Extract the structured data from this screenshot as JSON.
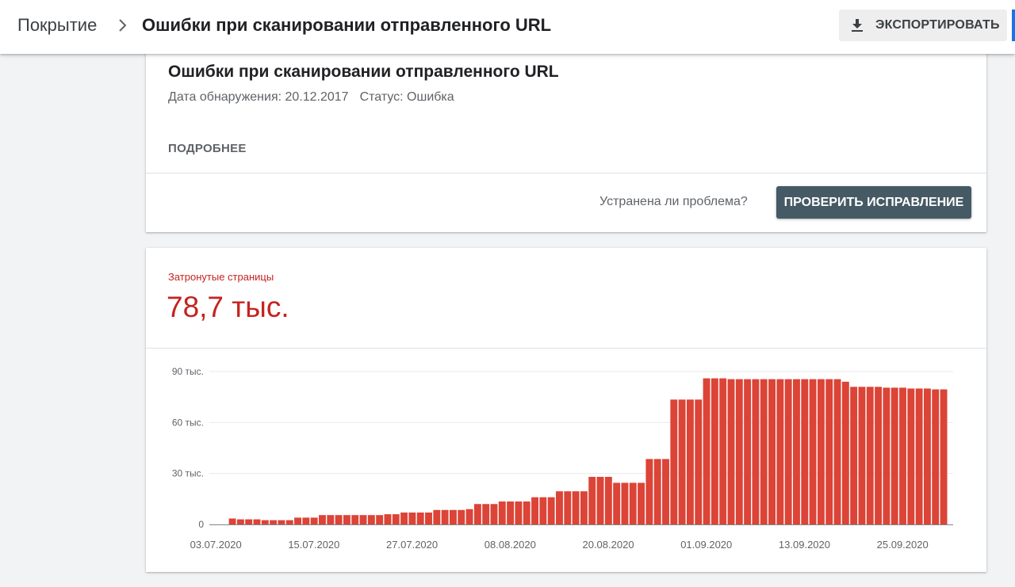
{
  "breadcrumb": {
    "root": "Покрытие",
    "current": "Ошибки при сканировании отправленного URL"
  },
  "toolbar": {
    "export_label": "ЭКСПОРТИРОВАТЬ",
    "export_icon": "download-icon"
  },
  "issue": {
    "title": "Ошибки при сканировании отправленного URL",
    "detected": "Дата обнаружения: 20.12.2017",
    "status": "Статус: Ошибка",
    "more_label": "ПОДРОБНЕЕ",
    "question": "Устранена ли проблема?",
    "validate_label": "ПРОВЕРИТЬ ИСПРАВЛЕНИЕ"
  },
  "metric": {
    "label": "Затронутые страницы",
    "value": "78,7 тыс."
  },
  "colors": {
    "accent": "#c5221f",
    "bar": "#db4437",
    "button": "#455a64"
  },
  "chart_data": {
    "type": "bar",
    "title": "",
    "xlabel": "",
    "ylabel": "",
    "ylim": [
      0,
      90000
    ],
    "y_ticks": [
      0,
      30000,
      60000,
      90000
    ],
    "y_tick_labels": [
      "0",
      "30 тыс.",
      "60 тыс.",
      "90 тыс."
    ],
    "x_tick_labels": [
      "03.07.2020",
      "15.07.2020",
      "27.07.2020",
      "08.08.2020",
      "20.08.2020",
      "01.09.2020",
      "13.09.2020",
      "25.09.2020"
    ],
    "grid": true,
    "start_date": "03.07.2020",
    "days": [
      "03.07.2020",
      "04.07.2020",
      "05.07.2020",
      "06.07.2020",
      "07.07.2020",
      "08.07.2020",
      "09.07.2020",
      "10.07.2020",
      "11.07.2020",
      "12.07.2020",
      "13.07.2020",
      "14.07.2020",
      "15.07.2020",
      "16.07.2020",
      "17.07.2020",
      "18.07.2020",
      "19.07.2020",
      "20.07.2020",
      "21.07.2020",
      "22.07.2020",
      "23.07.2020",
      "24.07.2020",
      "25.07.2020",
      "26.07.2020",
      "27.07.2020",
      "28.07.2020",
      "29.07.2020",
      "30.07.2020",
      "31.07.2020",
      "01.08.2020",
      "02.08.2020",
      "03.08.2020",
      "04.08.2020",
      "05.08.2020",
      "06.08.2020",
      "07.08.2020",
      "08.08.2020",
      "09.08.2020",
      "10.08.2020",
      "11.08.2020",
      "12.08.2020",
      "13.08.2020",
      "14.08.2020",
      "15.08.2020",
      "16.08.2020",
      "17.08.2020",
      "18.08.2020",
      "19.08.2020",
      "20.08.2020",
      "21.08.2020",
      "22.08.2020",
      "23.08.2020",
      "24.08.2020",
      "25.08.2020",
      "26.08.2020",
      "27.08.2020",
      "28.08.2020",
      "29.08.2020",
      "30.08.2020",
      "31.08.2020",
      "01.09.2020",
      "02.09.2020",
      "03.09.2020",
      "04.09.2020",
      "05.09.2020",
      "06.09.2020",
      "07.09.2020",
      "08.09.2020",
      "09.09.2020",
      "10.09.2020",
      "11.09.2020",
      "12.09.2020",
      "13.09.2020",
      "14.09.2020",
      "15.09.2020",
      "16.09.2020",
      "17.09.2020",
      "18.09.2020",
      "19.09.2020",
      "20.09.2020",
      "21.09.2020",
      "22.09.2020",
      "23.09.2020",
      "24.09.2020",
      "25.09.2020",
      "26.09.2020",
      "27.09.2020",
      "28.09.2020",
      "29.09.2020",
      "30.09.2020"
    ],
    "values": [
      0,
      0,
      3500,
      3000,
      3000,
      3000,
      2500,
      2500,
      2500,
      2500,
      4000,
      4000,
      4000,
      5500,
      5500,
      5500,
      5500,
      5500,
      5500,
      5500,
      5500,
      6000,
      6000,
      7000,
      7000,
      7000,
      7000,
      8500,
      8500,
      8500,
      8500,
      9000,
      12000,
      12000,
      12000,
      13500,
      13500,
      13500,
      13500,
      16000,
      16000,
      16000,
      19500,
      19500,
      19500,
      19500,
      28000,
      28000,
      28000,
      24500,
      24500,
      24500,
      24500,
      38500,
      38500,
      38500,
      73500,
      73500,
      73500,
      73500,
      86000,
      86000,
      86000,
      85500,
      85500,
      85500,
      85500,
      85500,
      85500,
      85500,
      85500,
      85500,
      85500,
      85500,
      85500,
      85500,
      85500,
      84000,
      81000,
      81000,
      81000,
      81000,
      80500,
      80500,
      80500,
      80000,
      80000,
      80000,
      79500,
      79500
    ]
  }
}
